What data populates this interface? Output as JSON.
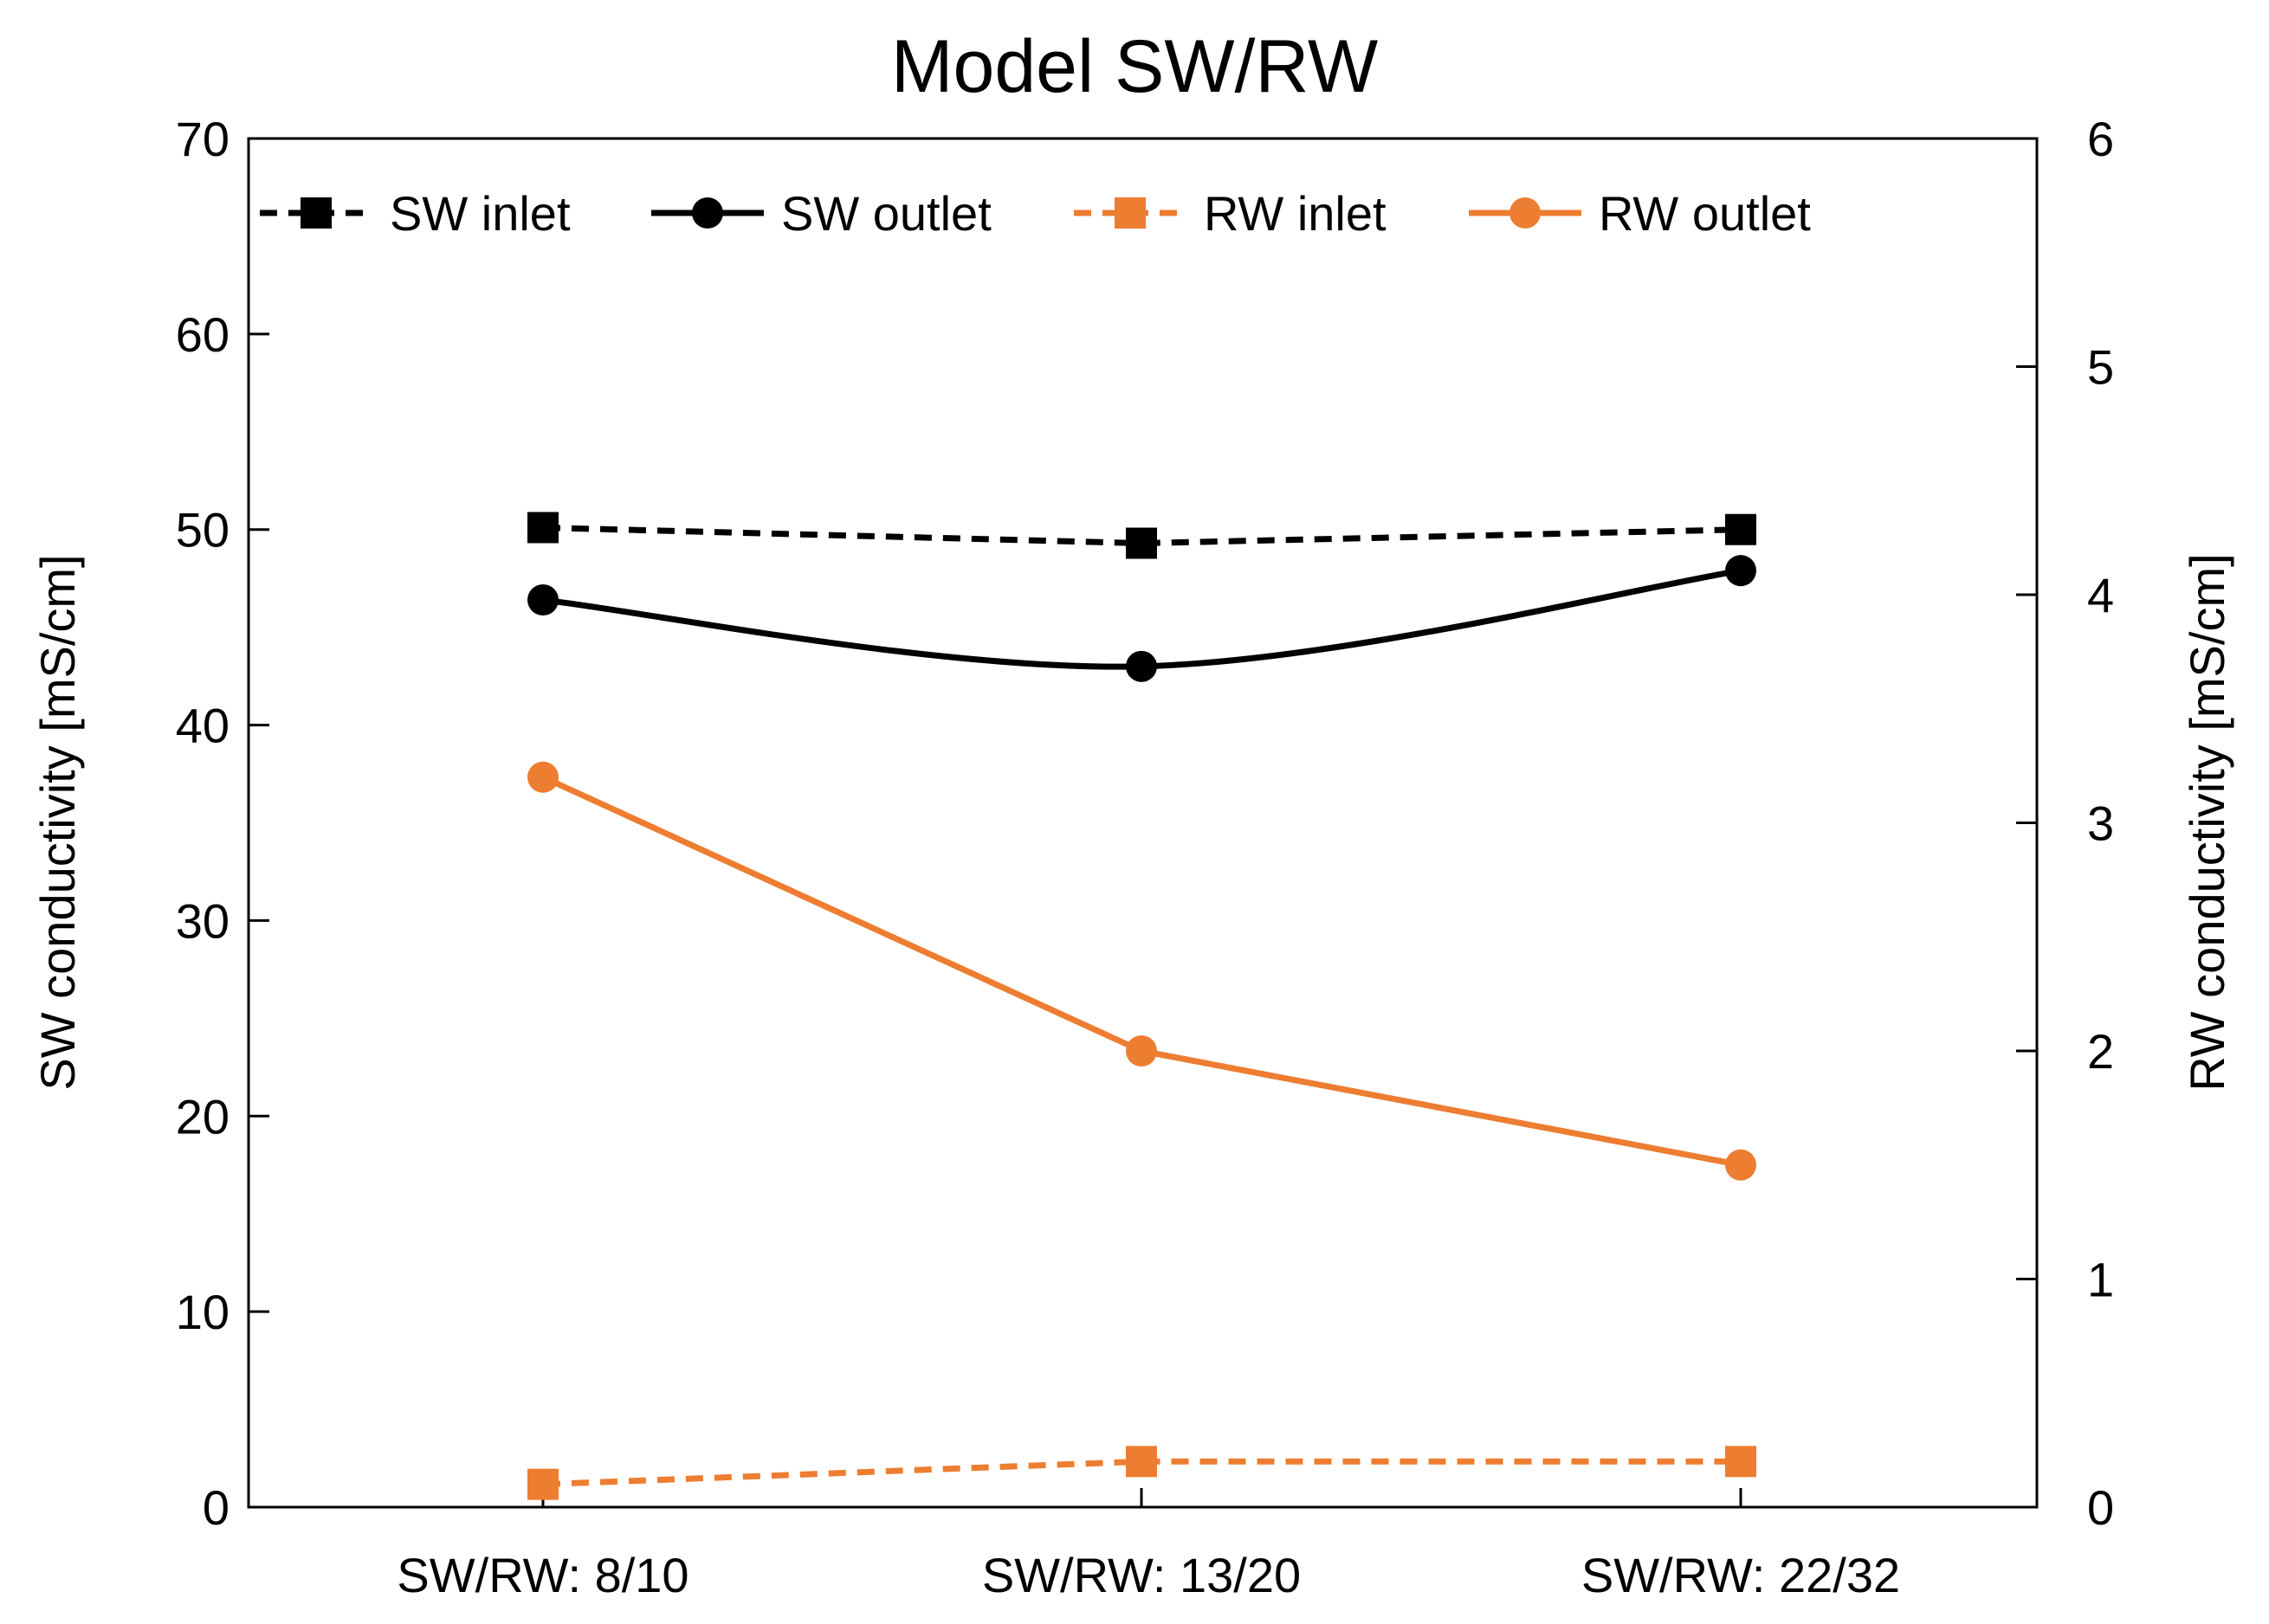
{
  "chart_data": {
    "type": "line",
    "title": "Model SW/RW",
    "categories": [
      "SW/RW: 8/10",
      "SW/RW: 13/20",
      "SW/RW: 22/32"
    ],
    "ylabel": "SW conductivity [mS/cm]",
    "ylim": [
      0,
      70
    ],
    "yticks": [
      0,
      10,
      20,
      30,
      40,
      50,
      60,
      70
    ],
    "y2label": "RW conductivity [mS/cm]",
    "y2lim": [
      0,
      6
    ],
    "y2ticks": [
      0,
      1,
      2,
      3,
      4,
      5,
      6
    ],
    "legend_position": "top",
    "grid": false,
    "series": [
      {
        "name": "SW inlet",
        "axis": "left",
        "values": [
          50.1,
          49.3,
          50.0
        ],
        "color": "#000000",
        "dash": true,
        "marker": "square",
        "smooth": false
      },
      {
        "name": "SW outlet",
        "axis": "left",
        "values": [
          46.4,
          43.0,
          47.9
        ],
        "color": "#000000",
        "dash": false,
        "marker": "circle",
        "smooth": true
      },
      {
        "name": "RW inlet",
        "axis": "right",
        "values": [
          0.1,
          0.2,
          0.2
        ],
        "color": "#ED7D31",
        "dash": true,
        "marker": "square",
        "smooth": false
      },
      {
        "name": "RW outlet",
        "axis": "right",
        "values": [
          3.2,
          2.0,
          1.5
        ],
        "color": "#ED7D31",
        "dash": false,
        "marker": "circle",
        "smooth": false
      }
    ]
  }
}
